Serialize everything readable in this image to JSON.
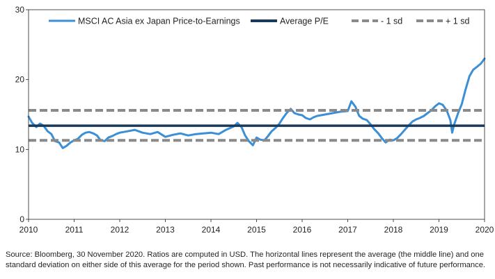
{
  "chart_data": {
    "type": "line",
    "title": "",
    "xlabel": "",
    "ylabel": "",
    "xlim": [
      2010,
      2020
    ],
    "ylim": [
      0,
      30
    ],
    "grid": false,
    "legend_position": "top",
    "x_ticks": [
      "2010",
      "2011",
      "2012",
      "2013",
      "2014",
      "2015",
      "2016",
      "2017",
      "2018",
      "2019",
      "2020"
    ],
    "y_ticks": [
      "0",
      "10",
      "20",
      "30"
    ],
    "series": [
      {
        "name": "MSCI AC Asia ex Japan Price-to-Earnings",
        "style": "line",
        "color": "#3a8fd6",
        "x": [
          2010.0,
          2010.08,
          2010.17,
          2010.25,
          2010.33,
          2010.42,
          2010.5,
          2010.58,
          2010.67,
          2010.75,
          2010.83,
          2010.92,
          2011.0,
          2011.08,
          2011.17,
          2011.25,
          2011.33,
          2011.42,
          2011.5,
          2011.58,
          2011.67,
          2011.75,
          2011.83,
          2011.92,
          2012.0,
          2012.17,
          2012.33,
          2012.5,
          2012.67,
          2012.83,
          2013.0,
          2013.17,
          2013.33,
          2013.5,
          2013.67,
          2013.83,
          2014.0,
          2014.17,
          2014.33,
          2014.5,
          2014.58,
          2014.67,
          2014.75,
          2014.83,
          2014.92,
          2015.0,
          2015.08,
          2015.17,
          2015.25,
          2015.33,
          2015.42,
          2015.5,
          2015.58,
          2015.67,
          2015.75,
          2015.83,
          2015.92,
          2016.0,
          2016.08,
          2016.17,
          2016.25,
          2016.33,
          2016.5,
          2016.67,
          2016.83,
          2017.0,
          2017.08,
          2017.17,
          2017.25,
          2017.33,
          2017.42,
          2017.5,
          2017.58,
          2017.67,
          2017.75,
          2017.83,
          2017.92,
          2018.0,
          2018.08,
          2018.17,
          2018.25,
          2018.33,
          2018.42,
          2018.5,
          2018.58,
          2018.67,
          2018.75,
          2018.83,
          2018.92,
          2019.0,
          2019.08,
          2019.17,
          2019.25,
          2019.29,
          2019.33,
          2019.42,
          2019.5,
          2019.58,
          2019.67,
          2019.75,
          2019.83,
          2019.92,
          2020.0
        ],
        "y": [
          14.7,
          13.8,
          13.2,
          13.7,
          13.4,
          12.6,
          12.2,
          11.2,
          11.0,
          10.2,
          10.5,
          11.0,
          11.3,
          11.5,
          12.1,
          12.4,
          12.5,
          12.3,
          12.0,
          11.3,
          11.2,
          11.7,
          11.9,
          12.2,
          12.4,
          12.6,
          12.8,
          12.4,
          12.2,
          12.5,
          11.8,
          12.1,
          12.3,
          12.0,
          12.2,
          12.3,
          12.4,
          12.2,
          12.8,
          13.3,
          13.8,
          13.2,
          12.0,
          11.2,
          10.6,
          11.7,
          11.4,
          11.3,
          11.9,
          12.6,
          13.1,
          13.7,
          14.5,
          15.3,
          15.8,
          15.2,
          15.0,
          14.9,
          14.5,
          14.3,
          14.6,
          14.8,
          15.0,
          15.2,
          15.4,
          15.5,
          16.9,
          16.1,
          14.8,
          14.4,
          14.2,
          13.6,
          12.9,
          12.3,
          11.6,
          11.0,
          11.4,
          11.3,
          11.6,
          12.2,
          12.8,
          13.4,
          14.0,
          14.3,
          14.5,
          14.8,
          15.2,
          15.6,
          16.2,
          16.6,
          16.4,
          15.6,
          14.2,
          12.4,
          13.5,
          15.2,
          16.5,
          18.5,
          20.5,
          21.4,
          21.8,
          22.3,
          23.0
        ]
      },
      {
        "name": "Average P/E",
        "style": "solid",
        "color": "#1a3a5c",
        "y_const": 13.4
      },
      {
        "name": "- 1 sd",
        "style": "dashed",
        "color": "#8a8a8a",
        "y_const": 11.3
      },
      {
        "name": "+ 1 sd",
        "style": "dashed",
        "color": "#8a8a8a",
        "y_const": 15.6
      }
    ]
  },
  "footnote": "Source: Bloomberg, 30 November 2020. Ratios are computed in USD. The horizontal lines represent the average (the middle line) and one standard deviation on either side of this average for the period shown. Past performance is not necessarily indicative of future performance."
}
